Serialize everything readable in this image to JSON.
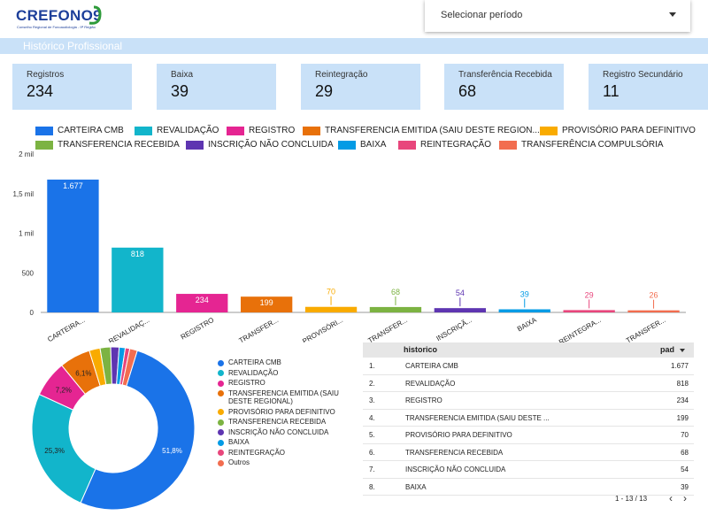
{
  "logo": {
    "text": "CREFONO9",
    "subtitle": "Conselho Regional de Fonoaudiologia - 9ª Região"
  },
  "period": {
    "label": "Selecionar período"
  },
  "section": {
    "title": "Histórico Profissional"
  },
  "cards": [
    {
      "title": "Registros",
      "value": "234"
    },
    {
      "title": "Baixa",
      "value": "39"
    },
    {
      "title": "Reintegração",
      "value": "29"
    },
    {
      "title": "Transferência Recebida",
      "value": "68"
    },
    {
      "title": "Registro Secundário",
      "value": "11"
    }
  ],
  "colors": {
    "CARTEIRA CMB": "#1a73e8",
    "REVALIDAÇÃO": "#12b5cb",
    "REGISTRO": "#e52592",
    "TRANSFERENCIA EMITIDA": "#e8710a",
    "PROVISÓRIO PARA DEFINITIVO": "#f9ab00",
    "TRANSFERENCIA RECEBIDA": "#7cb342",
    "INSCRIÇÃO NÃO CONCLUIDA": "#5e35b1",
    "BAIXA": "#039be5",
    "REINTEGRAÇÃO": "#e8467c",
    "TRANSFERÊNCIA COMPULSÓRIA": "#f26d4f",
    "Outros": "#f26d4f"
  },
  "bar_legend": [
    "CARTEIRA CMB",
    "REVALIDAÇÃO",
    "REGISTRO",
    "TRANSFERENCIA EMITIDA (SAIU DESTE REGION...",
    "PROVISÓRIO PARA DEFINITIVO",
    "TRANSFERENCIA RECEBIDA",
    "INSCRIÇÃO NÃO CONCLUIDA",
    "BAIXA",
    "REINTEGRAÇÃO",
    "TRANSFERÊNCIA COMPULSÓRIA"
  ],
  "chart_data": [
    {
      "type": "bar",
      "categories": [
        "CARTEIRA...",
        "REVALIDAÇ...",
        "REGISTRO",
        "TRANSFER...",
        "PROVISÓRI...",
        "TRANSFER...",
        "INSCRIÇÃ...",
        "BAIXA",
        "REINTEGRA...",
        "TRANSFER..."
      ],
      "series_keys": [
        "CARTEIRA CMB",
        "REVALIDAÇÃO",
        "REGISTRO",
        "TRANSFERENCIA EMITIDA",
        "PROVISÓRIO PARA DEFINITIVO",
        "TRANSFERENCIA RECEBIDA",
        "INSCRIÇÃO NÃO CONCLUIDA",
        "BAIXA",
        "REINTEGRAÇÃO",
        "TRANSFERÊNCIA COMPULSÓRIA"
      ],
      "values": [
        1677,
        818,
        234,
        199,
        70,
        68,
        54,
        39,
        29,
        26
      ],
      "value_labels": [
        "1.677",
        "818",
        "234",
        "199",
        "70",
        "68",
        "54",
        "39",
        "29",
        "26"
      ],
      "ylim": [
        0,
        2000
      ],
      "yticks": [
        0,
        500,
        1000,
        1500,
        2000
      ],
      "ytick_labels": [
        "0",
        "500",
        "1 mil",
        "1,5 mil",
        "2 mil"
      ],
      "grid": false,
      "legend": "top"
    },
    {
      "type": "pie",
      "donut": true,
      "labels": [
        "CARTEIRA CMB",
        "REVALIDAÇÃO",
        "REGISTRO",
        "TRANSFERENCIA EMITIDA (SAIU DESTE REGIONAL)",
        "PROVISÓRIO PARA DEFINITIVO",
        "TRANSFERENCIA RECEBIDA",
        "INSCRIÇÃO NÃO CONCLUIDA",
        "BAIXA",
        "REINTEGRAÇÃO",
        "Outros"
      ],
      "color_keys": [
        "CARTEIRA CMB",
        "REVALIDAÇÃO",
        "REGISTRO",
        "TRANSFERENCIA EMITIDA",
        "PROVISÓRIO PARA DEFINITIVO",
        "TRANSFERENCIA RECEBIDA",
        "INSCRIÇÃO NÃO CONCLUIDA",
        "BAIXA",
        "REINTEGRAÇÃO",
        "Outros"
      ],
      "values": [
        1677,
        818,
        234,
        199,
        70,
        68,
        54,
        39,
        29,
        49
      ],
      "slice_labels": [
        "51,8%",
        "25,3%",
        "7,2%",
        "6,1%",
        "",
        "",
        "",
        "",
        "",
        ""
      ],
      "legend": "right"
    }
  ],
  "table": {
    "headers": [
      "historico",
      "pad"
    ],
    "rows": [
      [
        "1.",
        "CARTEIRA CMB",
        "1.677"
      ],
      [
        "2.",
        "REVALIDAÇÃO",
        "818"
      ],
      [
        "3.",
        "REGISTRO",
        "234"
      ],
      [
        "4.",
        "TRANSFERENCIA EMITIDA (SAIU DESTE ...",
        "199"
      ],
      [
        "5.",
        "PROVISÓRIO PARA DEFINITIVO",
        "70"
      ],
      [
        "6.",
        "TRANSFERENCIA RECEBIDA",
        "68"
      ],
      [
        "7.",
        "INSCRIÇÃO NÃO CONCLUIDA",
        "54"
      ],
      [
        "8.",
        "BAIXA",
        "39"
      ]
    ],
    "pagination": "1 - 13 / 13",
    "prev": "‹",
    "next": "›"
  }
}
